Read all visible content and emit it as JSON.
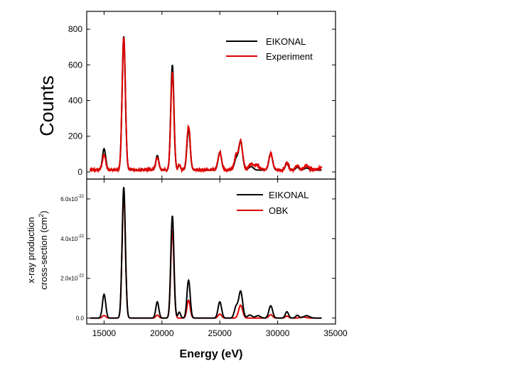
{
  "chart_data": [
    {
      "type": "line",
      "panel": "top",
      "ylabel": "Counts",
      "xlabel": "",
      "xlim": [
        13500,
        35000
      ],
      "ylim": [
        -40,
        900
      ],
      "yticks": [
        0,
        200,
        400,
        600,
        800
      ],
      "ytick_labels": [
        "0",
        "200",
        "400",
        "600",
        "800"
      ],
      "legend": "top-right",
      "series": [
        {
          "name": "EIKONAL",
          "color": "#000000",
          "baseline": 10,
          "peaks": [
            [
              15000,
              120,
              140
            ],
            [
              16700,
              750,
              140
            ],
            [
              19600,
              82,
              130
            ],
            [
              20900,
              590,
              135
            ],
            [
              21500,
              28,
              100
            ],
            [
              22300,
              230,
              140
            ],
            [
              25000,
              100,
              150
            ],
            [
              26400,
              60,
              150
            ],
            [
              26800,
              160,
              170
            ],
            [
              27700,
              20,
              200
            ],
            [
              29400,
              92,
              160
            ],
            [
              30800,
              36,
              140
            ],
            [
              31700,
              16,
              140
            ],
            [
              32500,
              12,
              200
            ]
          ],
          "noise": 0
        },
        {
          "name": "Experiment",
          "color": "#dd0000",
          "baseline": 12,
          "peaks": [
            [
              15000,
              85,
              140
            ],
            [
              16700,
              740,
              140
            ],
            [
              19600,
              70,
              130
            ],
            [
              20900,
              545,
              135
            ],
            [
              21500,
              25,
              100
            ],
            [
              22300,
              245,
              140
            ],
            [
              25000,
              100,
              150
            ],
            [
              26400,
              75,
              150
            ],
            [
              26800,
              160,
              170
            ],
            [
              27700,
              30,
              200
            ],
            [
              28200,
              25,
              200
            ],
            [
              29400,
              90,
              160
            ],
            [
              30800,
              42,
              140
            ],
            [
              31700,
              25,
              140
            ],
            [
              32500,
              22,
              200
            ],
            [
              33800,
              12,
              250
            ]
          ],
          "noise": 7
        }
      ]
    },
    {
      "type": "line",
      "panel": "bottom",
      "ylabel_lines": [
        "x-ray production",
        "cross-section (cm"
      ],
      "ylabel_sup": "2",
      "ylabel_close": ")",
      "xlabel": "Energy (eV)",
      "xlim": [
        13500,
        35000
      ],
      "xticks": [
        15000,
        20000,
        25000,
        30000,
        35000
      ],
      "xtick_labels": [
        "15000",
        "20000",
        "25000",
        "30000",
        "35000"
      ],
      "ylim": [
        -3e-23,
        7e-22
      ],
      "yticks": [
        0,
        2e-22,
        4e-22,
        6e-22
      ],
      "ytick_mantissas": [
        "0.0",
        "2.0x10",
        "4.0x10",
        "6.0x10"
      ],
      "ytick_exponents": [
        "",
        "-22",
        "-22",
        "-22"
      ],
      "legend": "top-right",
      "series": [
        {
          "name": "EIKONAL",
          "color": "#000000",
          "baseline": 0,
          "peaks": [
            [
              15000,
              1.2e-22,
              140
            ],
            [
              16700,
              6.6e-22,
              140
            ],
            [
              19600,
              8.2e-23,
              130
            ],
            [
              20900,
              5.15e-22,
              135
            ],
            [
              21500,
              3e-23,
              110
            ],
            [
              22300,
              1.9e-22,
              140
            ],
            [
              25000,
              8.2e-23,
              150
            ],
            [
              26400,
              5.5e-23,
              150
            ],
            [
              26800,
              1.35e-22,
              170
            ],
            [
              27600,
              1.5e-23,
              200
            ],
            [
              28300,
              1.2e-23,
              200
            ],
            [
              29400,
              6.2e-23,
              160
            ],
            [
              30800,
              3.2e-23,
              140
            ],
            [
              31700,
              1.4e-23,
              140
            ],
            [
              32500,
              1.2e-23,
              250
            ]
          ],
          "noise": 0
        },
        {
          "name": "OBK",
          "color": "#dd0000",
          "baseline": 0,
          "peaks": [
            [
              15000,
              1.3e-23,
              140
            ],
            [
              16700,
              6.3e-22,
              140
            ],
            [
              19600,
              1.5e-23,
              130
            ],
            [
              20900,
              4.45e-22,
              135
            ],
            [
              22300,
              9e-23,
              140
            ],
            [
              25000,
              2e-23,
              150
            ],
            [
              26800,
              6.5e-23,
              170
            ],
            [
              29400,
              1.7e-23,
              160
            ],
            [
              30800,
              1e-23,
              140
            ],
            [
              32200,
              5e-24,
              250
            ]
          ],
          "noise": 0
        }
      ]
    }
  ]
}
